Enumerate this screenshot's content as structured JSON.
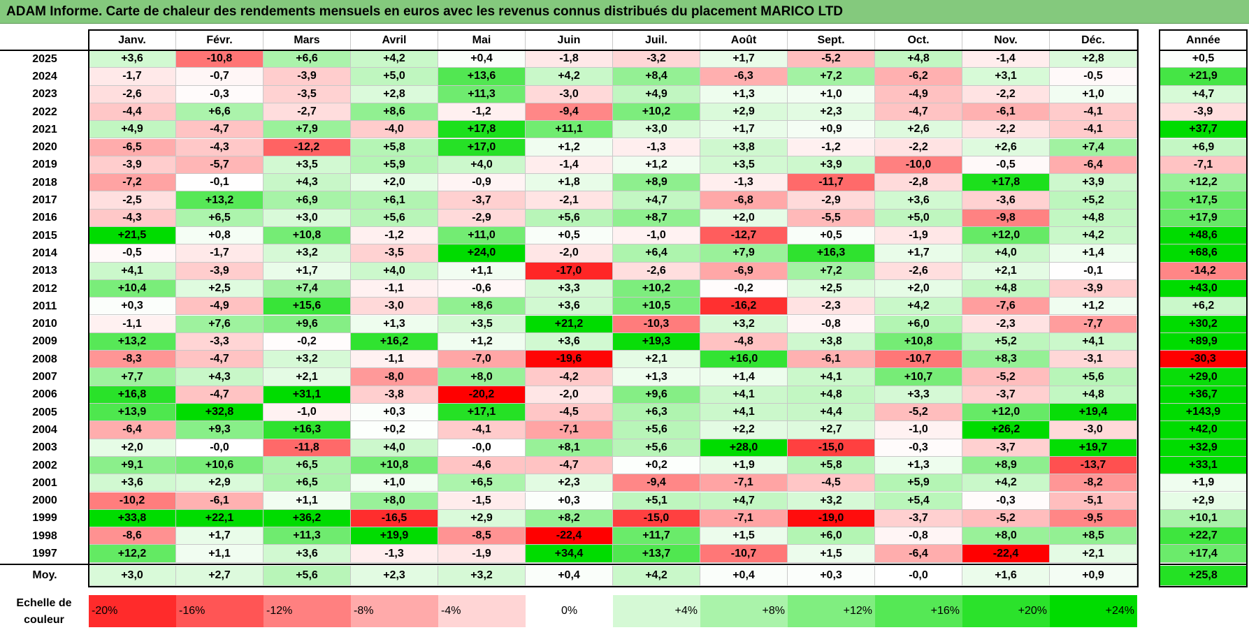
{
  "title": "ADAM Informe. Carte de chaleur des rendements mensuels en euros avec les revenus connus distribués du placement MARICO LTD",
  "chart_data": {
    "type": "heatmap",
    "months": [
      "Janv.",
      "Févr.",
      "Mars",
      "Avril",
      "Mai",
      "Juin",
      "Juil.",
      "Août",
      "Sept.",
      "Oct.",
      "Nov.",
      "Déc."
    ],
    "year_header": "Année",
    "rows": [
      {
        "year": "2025",
        "values": [
          "+3,6",
          "-10,8",
          "+6,6",
          "+4,2",
          "+0,4",
          "-1,8",
          "-3,2",
          "+1,7",
          "-5,2",
          "+4,8",
          "-1,4",
          "+2,8"
        ],
        "annual": "+0,5"
      },
      {
        "year": "2024",
        "values": [
          "-1,7",
          "-0,7",
          "-3,9",
          "+5,0",
          "+13,6",
          "+4,2",
          "+8,4",
          "-6,3",
          "+7,2",
          "-6,2",
          "+3,1",
          "-0,5"
        ],
        "annual": "+21,9"
      },
      {
        "year": "2023",
        "values": [
          "-2,6",
          "-0,3",
          "-3,5",
          "+2,8",
          "+11,3",
          "-3,0",
          "+4,9",
          "+1,3",
          "+1,0",
          "-4,9",
          "-2,2",
          "+1,0"
        ],
        "annual": "+4,7"
      },
      {
        "year": "2022",
        "values": [
          "-4,4",
          "+6,6",
          "-2,7",
          "+8,6",
          "-1,2",
          "-9,4",
          "+10,2",
          "+2,9",
          "+2,3",
          "-4,7",
          "-6,1",
          "-4,1"
        ],
        "annual": "-3,9"
      },
      {
        "year": "2021",
        "values": [
          "+4,9",
          "-4,7",
          "+7,9",
          "-4,0",
          "+17,8",
          "+11,1",
          "+3,0",
          "+1,7",
          "+0,9",
          "+2,6",
          "-2,2",
          "-4,1"
        ],
        "annual": "+37,7"
      },
      {
        "year": "2020",
        "values": [
          "-6,5",
          "-4,3",
          "-12,2",
          "+5,8",
          "+17,0",
          "+1,2",
          "-1,3",
          "+3,8",
          "-1,2",
          "-2,2",
          "+2,6",
          "+7,4"
        ],
        "annual": "+6,9"
      },
      {
        "year": "2019",
        "values": [
          "-3,9",
          "-5,7",
          "+3,5",
          "+5,9",
          "+4,0",
          "-1,4",
          "+1,2",
          "+3,5",
          "+3,9",
          "-10,0",
          "-0,5",
          "-6,4"
        ],
        "annual": "-7,1"
      },
      {
        "year": "2018",
        "values": [
          "-7,2",
          "-0,1",
          "+4,3",
          "+2,0",
          "-0,9",
          "+1,8",
          "+8,9",
          "-1,3",
          "-11,7",
          "-2,8",
          "+17,8",
          "+3,9"
        ],
        "annual": "+12,2"
      },
      {
        "year": "2017",
        "values": [
          "-2,5",
          "+13,2",
          "+6,9",
          "+6,1",
          "-3,7",
          "-2,1",
          "+4,7",
          "-6,8",
          "-2,9",
          "+3,6",
          "-3,6",
          "+5,2"
        ],
        "annual": "+17,5"
      },
      {
        "year": "2016",
        "values": [
          "-4,3",
          "+6,5",
          "+3,0",
          "+5,6",
          "-2,9",
          "+5,6",
          "+8,7",
          "+2,0",
          "-5,5",
          "+5,0",
          "-9,8",
          "+4,8"
        ],
        "annual": "+17,9"
      },
      {
        "year": "2015",
        "values": [
          "+21,5",
          "+0,8",
          "+10,8",
          "-1,2",
          "+11,0",
          "+0,5",
          "-1,0",
          "-12,7",
          "+0,5",
          "-1,9",
          "+12,0",
          "+4,2"
        ],
        "annual": "+48,6"
      },
      {
        "year": "2014",
        "values": [
          "-0,5",
          "-1,7",
          "+3,2",
          "-3,5",
          "+24,0",
          "-2,0",
          "+6,4",
          "+7,9",
          "+16,3",
          "+1,7",
          "+4,0",
          "+1,4"
        ],
        "annual": "+68,6"
      },
      {
        "year": "2013",
        "values": [
          "+4,1",
          "-3,9",
          "+1,7",
          "+4,0",
          "+1,1",
          "-17,0",
          "-2,6",
          "-6,9",
          "+7,2",
          "-2,6",
          "+2,1",
          "-0,1"
        ],
        "annual": "-14,2"
      },
      {
        "year": "2012",
        "values": [
          "+10,4",
          "+2,5",
          "+7,4",
          "-1,1",
          "-0,6",
          "+3,3",
          "+10,2",
          "-0,2",
          "+2,5",
          "+2,0",
          "+4,8",
          "-3,9"
        ],
        "annual": "+43,0"
      },
      {
        "year": "2011",
        "values": [
          "+0,3",
          "-4,9",
          "+15,6",
          "-3,0",
          "+8,6",
          "+3,6",
          "+10,5",
          "-16,2",
          "-2,3",
          "+4,2",
          "-7,6",
          "+1,2"
        ],
        "annual": "+6,2"
      },
      {
        "year": "2010",
        "values": [
          "-1,1",
          "+7,6",
          "+9,6",
          "+1,3",
          "+3,5",
          "+21,2",
          "-10,3",
          "+3,2",
          "-0,8",
          "+6,0",
          "-2,3",
          "-7,7"
        ],
        "annual": "+30,2"
      },
      {
        "year": "2009",
        "values": [
          "+13,2",
          "-3,3",
          "-0,2",
          "+16,2",
          "+1,2",
          "+3,6",
          "+19,3",
          "-4,8",
          "+3,8",
          "+10,8",
          "+5,2",
          "+4,1"
        ],
        "annual": "+89,9"
      },
      {
        "year": "2008",
        "values": [
          "-8,3",
          "-4,7",
          "+3,2",
          "-1,1",
          "-7,0",
          "-19,6",
          "+2,1",
          "+16,0",
          "-6,1",
          "-10,7",
          "+8,3",
          "-3,1"
        ],
        "annual": "-30,3"
      },
      {
        "year": "2007",
        "values": [
          "+7,7",
          "+4,3",
          "+2,1",
          "-8,0",
          "+8,0",
          "-4,2",
          "+1,3",
          "+1,4",
          "+4,1",
          "+10,7",
          "-5,2",
          "+5,6"
        ],
        "annual": "+29,0"
      },
      {
        "year": "2006",
        "values": [
          "+16,8",
          "-4,7",
          "+31,1",
          "-3,8",
          "-20,2",
          "-2,0",
          "+9,6",
          "+4,1",
          "+4,8",
          "+3,3",
          "-3,7",
          "+4,8"
        ],
        "annual": "+36,7"
      },
      {
        "year": "2005",
        "values": [
          "+13,9",
          "+32,8",
          "-1,0",
          "+0,3",
          "+17,1",
          "-4,5",
          "+6,3",
          "+4,1",
          "+4,4",
          "-5,2",
          "+12,0",
          "+19,4"
        ],
        "annual": "+143,9"
      },
      {
        "year": "2004",
        "values": [
          "-6,4",
          "+9,3",
          "+16,3",
          "+0,2",
          "-4,1",
          "-7,1",
          "+5,6",
          "+2,2",
          "+2,7",
          "-1,0",
          "+26,2",
          "-3,0"
        ],
        "annual": "+42,0"
      },
      {
        "year": "2003",
        "values": [
          "+2,0",
          "-0,0",
          "-11,8",
          "+4,0",
          "-0,0",
          "+8,1",
          "+5,6",
          "+28,0",
          "-15,0",
          "-0,3",
          "-3,7",
          "+19,7"
        ],
        "annual": "+32,9"
      },
      {
        "year": "2002",
        "values": [
          "+9,1",
          "+10,6",
          "+6,5",
          "+10,8",
          "-4,6",
          "-4,7",
          "+0,2",
          "+1,9",
          "+5,8",
          "+1,3",
          "+8,9",
          "-13,7"
        ],
        "annual": "+33,1"
      },
      {
        "year": "2001",
        "values": [
          "+3,6",
          "+2,9",
          "+6,5",
          "+1,0",
          "+6,5",
          "+2,3",
          "-9,4",
          "-7,1",
          "-4,5",
          "+5,9",
          "+4,2",
          "-8,2"
        ],
        "annual": "+1,9"
      },
      {
        "year": "2000",
        "values": [
          "-10,2",
          "-6,1",
          "+1,1",
          "+8,0",
          "-1,5",
          "+0,3",
          "+5,1",
          "+4,7",
          "+3,2",
          "+5,4",
          "-0,3",
          "-5,1"
        ],
        "annual": "+2,9"
      },
      {
        "year": "1999",
        "values": [
          "+33,8",
          "+22,1",
          "+36,2",
          "-16,5",
          "+2,9",
          "+8,2",
          "-15,0",
          "-7,1",
          "-19,0",
          "-3,7",
          "-5,2",
          "-9,5"
        ],
        "annual": "+10,1"
      },
      {
        "year": "1998",
        "values": [
          "-8,6",
          "+1,7",
          "+11,3",
          "+19,9",
          "-8,5",
          "-22,4",
          "+11,7",
          "+1,5",
          "+6,0",
          "-0,8",
          "+8,0",
          "+8,5"
        ],
        "annual": "+22,7"
      },
      {
        "year": "1997",
        "values": [
          "+12,2",
          "+1,1",
          "+3,6",
          "-1,3",
          "-1,9",
          "+34,4",
          "+13,7",
          "-10,7",
          "+1,5",
          "-6,4",
          "-22,4",
          "+2,1"
        ],
        "annual": "+17,4"
      }
    ],
    "average": {
      "label": "Moy.",
      "values": [
        "+3,0",
        "+2,7",
        "+5,6",
        "+2,3",
        "+3,2",
        "+0,4",
        "+4,2",
        "+0,4",
        "+0,3",
        "-0,0",
        "+1,6",
        "+0,9"
      ],
      "annual": "+25,8"
    },
    "scale": {
      "label_line1": "Echelle de",
      "label_line2": "couleur",
      "steps": [
        "-20%",
        "-16%",
        "-12%",
        "-8%",
        "-4%",
        "0%",
        "+4%",
        "+8%",
        "+12%",
        "+16%",
        "+20%",
        "+24%"
      ]
    }
  }
}
